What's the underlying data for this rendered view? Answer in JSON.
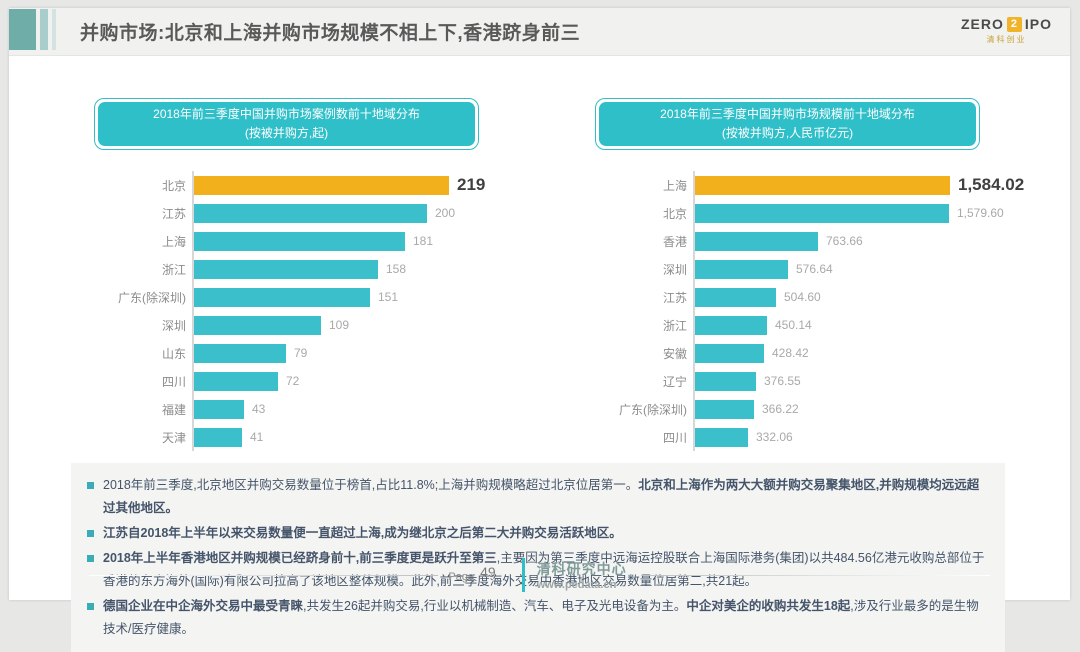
{
  "header": {
    "title": "并购市场:北京和上海并购市场规模不相上下,香港跻身前三",
    "logo": {
      "zero": "ZERO",
      "two": "2",
      "ipo": "IPO",
      "sub": "清科创业"
    }
  },
  "colors": {
    "teal_accent": "#2fbfc9",
    "gold_highlight": "#f2b11c",
    "bullet_text": "#44546a",
    "title_text": "#595959"
  },
  "chart_data": [
    {
      "type": "bar",
      "orientation": "horizontal",
      "title": "2018年前三季度中国并购市场案例数前十地域分布",
      "subtitle": "(按被并购方,起)",
      "categories": [
        "北京",
        "江苏",
        "上海",
        "浙江",
        "广东(除深圳)",
        "深圳",
        "山东",
        "四川",
        "福建",
        "天津"
      ],
      "values": [
        219,
        200,
        181,
        158,
        151,
        109,
        79,
        72,
        43,
        41
      ],
      "value_labels": [
        "219",
        "200",
        "181",
        "158",
        "151",
        "109",
        "79",
        "72",
        "43",
        "41"
      ],
      "highlight_index": 0,
      "bar_color": "#3bbfca",
      "highlight_color": "#f2b11c",
      "xlim": [
        0,
        230
      ],
      "grid": false,
      "legend": "none"
    },
    {
      "type": "bar",
      "orientation": "horizontal",
      "title": "2018年前三季度中国并购市场规模前十地域分布",
      "subtitle": "(按被并购方,人民币亿元)",
      "categories": [
        "上海",
        "北京",
        "香港",
        "深圳",
        "江苏",
        "浙江",
        "安徽",
        "辽宁",
        "广东(除深圳)",
        "四川"
      ],
      "values": [
        1584.02,
        1579.6,
        763.66,
        576.64,
        504.6,
        450.14,
        428.42,
        376.55,
        366.22,
        332.06
      ],
      "value_labels": [
        "1,584.02",
        "1,579.60",
        "763.66",
        "576.64",
        "504.60",
        "450.14",
        "428.42",
        "376.55",
        "366.22",
        "332.06"
      ],
      "highlight_index": 0,
      "bar_color": "#3bbfca",
      "highlight_color": "#f2b11c",
      "xlim": [
        0,
        1650
      ],
      "grid": false,
      "legend": "none"
    }
  ],
  "bullets": [
    {
      "segments": [
        {
          "text": "2018年前三季度,北京地区并购交易数量位于榜首,占比11.8%;上海并购规模略超过北京位居第一。",
          "bold": false
        },
        {
          "text": "北京和上海作为两大大额并购交易聚集地区,并购规模均远远超过其他地区。",
          "bold": true
        }
      ]
    },
    {
      "segments": [
        {
          "text": "江苏自2018年上半年以来交易数量便一直超过上海,成为继北京之后第二大并购交易活跃地区。",
          "bold": true
        }
      ]
    },
    {
      "segments": [
        {
          "text": "2018年上半年香港地区并购规模已经跻身前十,前三季度更是跃升至第三",
          "bold": true
        },
        {
          "text": ",主要因为第三季度中远海运控股联合上海国际港务(集团)以共484.56亿港元收购总部位于香港的东方海外(国际)有限公司拉高了该地区整体规模。此外,前三季度海外交易中香港地区交易数量位居第二,共21起。",
          "bold": false
        }
      ]
    },
    {
      "segments": [
        {
          "text": "德国企业在中企海外交易中最受青睐",
          "bold": true
        },
        {
          "text": ",共发生26起并购交易,行业以机械制造、汽车、电子及光电设备为主。",
          "bold": false
        },
        {
          "text": "中企对美企的收购共发生18起",
          "bold": true
        },
        {
          "text": ",涉及行业最多的是生物技术/医疗健康。",
          "bold": false
        }
      ]
    }
  ],
  "footer": {
    "page_label": "Page",
    "page_number": "49",
    "org_name": "清科研究中心",
    "org_site": "www.pedata.cn"
  }
}
